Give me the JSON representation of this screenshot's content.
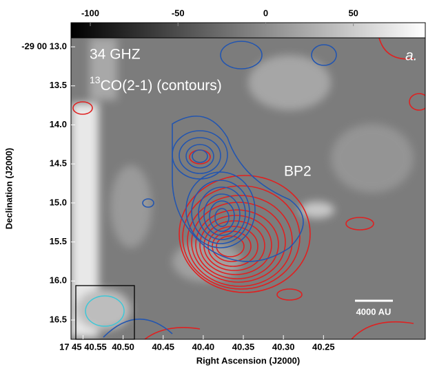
{
  "chart_data": {
    "type": "image",
    "xlabel": "Right Ascension (J2000)",
    "ylabel": "Declination (J2000)",
    "xlim": [
      40.565,
      40.123
    ],
    "xticks": [
      {
        "value": 40.55,
        "label": "17 45 40.55"
      },
      {
        "value": 40.5,
        "label": "40.50"
      },
      40.45,
      {
        "value": 40.4,
        "label": "40.40"
      },
      40.35,
      {
        "value": 40.3,
        "label": "40.30"
      },
      40.25
    ],
    "ylim": [
      16.747,
      12.885
    ],
    "yticks": [
      {
        "value": 13,
        "label": "-29 00 13.0"
      },
      13.5,
      {
        "value": 14,
        "label": "14.0"
      },
      14.5,
      {
        "value": 15,
        "label": "15.0"
      },
      15.5,
      {
        "value": 16,
        "label": "16.0"
      },
      16.5
    ],
    "colorbar": {
      "lim": [
        -111,
        91
      ],
      "ticks": [
        -100,
        -50,
        0,
        50
      ]
    },
    "annotations": {
      "band": "34 GHZ",
      "contours": {
        "sup": "13",
        "text": "CO(2-1) (contours)"
      },
      "panel": "a.",
      "source": "BP2",
      "scale_bar": "4000 AU"
    }
  }
}
